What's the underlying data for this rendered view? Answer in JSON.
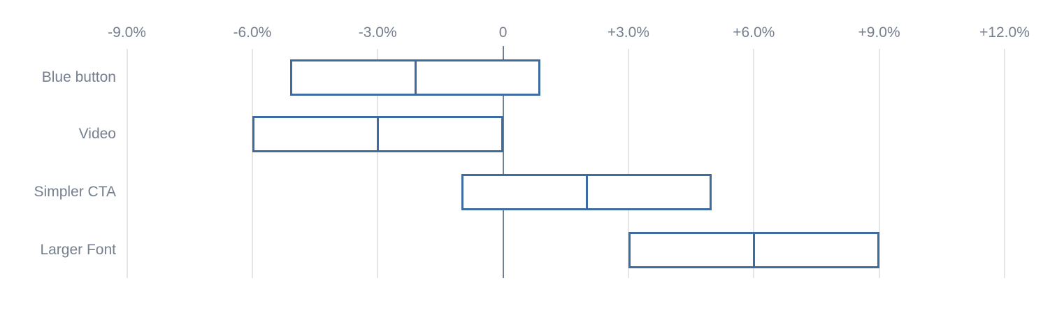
{
  "chart_data": {
    "type": "bar",
    "subtype": "horizontal-range-interval",
    "title": "",
    "xlabel": "",
    "ylabel": "",
    "value_unit": "%",
    "legend": "none",
    "categories": [
      "Blue button",
      "Video",
      "Simpler CTA",
      "Larger Font"
    ],
    "series": [
      {
        "name": "Blue button",
        "low": -5.1,
        "mid": -2.1,
        "high": 0.9
      },
      {
        "name": "Video",
        "low": -6.0,
        "mid": -3.0,
        "high": 0.0
      },
      {
        "name": "Simpler CTA",
        "low": -1.0,
        "mid": 2.0,
        "high": 5.0
      },
      {
        "name": "Larger Font",
        "low": 3.0,
        "mid": 6.0,
        "high": 9.0
      }
    ],
    "axis": {
      "min": -9,
      "max": 12,
      "step": 3,
      "tick_values": [
        -9,
        -6,
        -3,
        0,
        3,
        6,
        9,
        12
      ],
      "tick_labels": [
        "-9.0%",
        "-6.0%",
        "-3.0%",
        "0",
        "+3.0%",
        "+6.0%",
        "+9.0%",
        "+12.0%"
      ],
      "grid": true,
      "zero_line": true
    },
    "colors": {
      "bar_border": "#3e6ca0",
      "bar_fill": "#ffffff",
      "gridline": "#e5e5e5",
      "zero_line": "#71808f",
      "text": "#757f8e"
    }
  }
}
